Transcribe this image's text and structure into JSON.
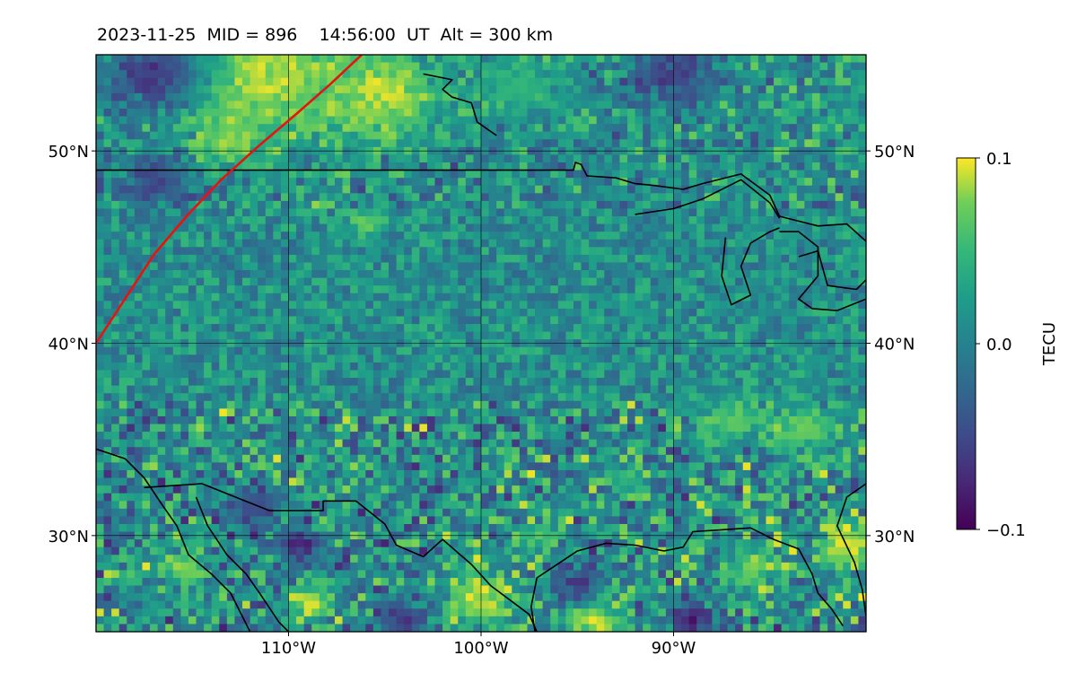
{
  "title": "2023-11-25  MID = 896    14:56:00  UT  Alt = 300 km",
  "chart_data": {
    "type": "heatmap",
    "lon_range": [
      -120,
      -80
    ],
    "lat_range": [
      25,
      55
    ],
    "lon_ticks": [
      {
        "value": -110,
        "label": "110°W"
      },
      {
        "value": -100,
        "label": "100°W"
      },
      {
        "value": -90,
        "label": "90°W"
      }
    ],
    "lat_ticks": [
      {
        "value": 50,
        "label": "50°N"
      },
      {
        "value": 40,
        "label": "40°N"
      },
      {
        "value": 30,
        "label": "30°N"
      }
    ],
    "grid": true,
    "colorbar": {
      "label": "TECU",
      "min": -0.1,
      "max": 0.1,
      "ticks": [
        {
          "value": 0.1,
          "label": "0.1"
        },
        {
          "value": 0.0,
          "label": "0.0"
        },
        {
          "value": -0.1,
          "label": "−0.1"
        }
      ],
      "colormap": "viridis"
    },
    "track_line": {
      "color": "#e8140c",
      "points": [
        [
          -120,
          40
        ],
        [
          -118.5,
          42.3
        ],
        [
          -117,
          44.6
        ],
        [
          -115.3,
          46.6
        ],
        [
          -113.5,
          48.5
        ],
        [
          -111.5,
          50.3
        ],
        [
          -109.5,
          52.0
        ],
        [
          -107.8,
          53.5
        ],
        [
          -106.2,
          55
        ]
      ]
    },
    "hotspots": [
      {
        "lon": -111,
        "lat": 53.8,
        "value": 0.1,
        "radius": 4.2
      },
      {
        "lon": -105,
        "lat": 53.0,
        "value": 0.1,
        "radius": 3.0
      },
      {
        "lon": -113,
        "lat": 50.5,
        "value": 0.09,
        "radius": 1.6
      },
      {
        "lon": -117,
        "lat": 54,
        "value": -0.08,
        "radius": 2.2
      },
      {
        "lon": -90,
        "lat": 54,
        "value": -0.07,
        "radius": 2.0
      },
      {
        "lon": -98,
        "lat": 53.5,
        "value": 0.05,
        "radius": 2.2
      },
      {
        "lon": -117,
        "lat": 48.5,
        "value": -0.06,
        "radius": 1.6
      },
      {
        "lon": -106,
        "lat": 46.2,
        "value": 0.09,
        "radius": 0.8
      },
      {
        "lon": -87,
        "lat": 36.0,
        "value": 0.07,
        "radius": 1.8
      },
      {
        "lon": -83,
        "lat": 35.5,
        "value": 0.08,
        "radius": 1.6
      },
      {
        "lon": -81,
        "lat": 29.5,
        "value": 0.1,
        "radius": 1.8
      },
      {
        "lon": -86,
        "lat": 28.2,
        "value": 0.08,
        "radius": 1.6
      },
      {
        "lon": -100,
        "lat": 26.8,
        "value": 0.1,
        "radius": 2.0
      },
      {
        "lon": -94,
        "lat": 25.6,
        "value": 0.1,
        "radius": 1.6
      },
      {
        "lon": -115.5,
        "lat": 28.3,
        "value": 0.09,
        "radius": 1.3
      },
      {
        "lon": -109,
        "lat": 26.5,
        "value": 0.1,
        "radius": 1.2
      },
      {
        "lon": -109.5,
        "lat": 29.5,
        "value": -0.08,
        "radius": 1.3
      },
      {
        "lon": -95,
        "lat": 27.5,
        "value": -0.08,
        "radius": 1.2
      },
      {
        "lon": -89,
        "lat": 25.6,
        "value": -0.09,
        "radius": 1.2
      },
      {
        "lon": -104,
        "lat": 25.7,
        "value": -0.07,
        "radius": 1.3
      },
      {
        "lon": -97,
        "lat": 30,
        "value": 0.07,
        "radius": 1.0
      },
      {
        "lon": -112,
        "lat": 31.5,
        "value": -0.05,
        "radius": 1.5
      },
      {
        "lon": -92.5,
        "lat": 33,
        "value": 0.06,
        "radius": 1.0
      }
    ],
    "coastlines": [
      [
        [
          -120,
          49
        ],
        [
          -95.2,
          49
        ],
        [
          -95.1,
          49.4
        ],
        [
          -94.8,
          49.3
        ],
        [
          -94.5,
          48.7
        ],
        [
          -93,
          48.6
        ],
        [
          -92,
          48.3
        ],
        [
          -91,
          48.2
        ],
        [
          -89.5,
          48.0
        ],
        [
          -88.5,
          48.3
        ],
        [
          -86.5,
          48.8
        ],
        [
          -85,
          47.7
        ],
        [
          -84.5,
          46.6
        ],
        [
          -82.5,
          46.1
        ],
        [
          -81,
          46.2
        ],
        [
          -80,
          45.3
        ]
      ],
      [
        [
          -79.8,
          55
        ],
        [
          -79.8,
          53
        ],
        [
          -80,
          52.7
        ],
        [
          -78,
          51.5
        ]
      ],
      [
        [
          -103,
          54
        ],
        [
          -101.5,
          53.7
        ],
        [
          -102,
          53.2
        ],
        [
          -101.5,
          52.8
        ],
        [
          -100.5,
          52.5
        ],
        [
          -100.2,
          51.5
        ],
        [
          -99.2,
          50.8
        ]
      ],
      [
        [
          -92,
          46.7
        ],
        [
          -90,
          47
        ],
        [
          -88.5,
          47.5
        ],
        [
          -86.5,
          48.5
        ],
        [
          -85,
          47.3
        ],
        [
          -84.5,
          46.5
        ]
      ],
      [
        [
          -87.3,
          45.5
        ],
        [
          -87.5,
          43.5
        ],
        [
          -87.0,
          42
        ],
        [
          -86,
          42.5
        ],
        [
          -86.5,
          44
        ],
        [
          -86,
          45.2
        ],
        [
          -85,
          45.8
        ],
        [
          -84.5,
          46.0
        ]
      ],
      [
        [
          -84.5,
          45.8
        ],
        [
          -83.5,
          45.8
        ],
        [
          -82.5,
          45.0
        ],
        [
          -82.5,
          43.5
        ],
        [
          -83.5,
          42.3
        ],
        [
          -82.8,
          41.8
        ],
        [
          -81.5,
          41.7
        ],
        [
          -80,
          42.3
        ]
      ],
      [
        [
          -83.5,
          44.5
        ],
        [
          -82.5,
          44.8
        ],
        [
          -82,
          43
        ],
        [
          -80.5,
          42.8
        ],
        [
          -80,
          43.3
        ]
      ],
      [
        [
          -120,
          34.5
        ],
        [
          -118.5,
          34
        ],
        [
          -117.5,
          33
        ],
        [
          -116.5,
          31.5
        ],
        [
          -115.8,
          30.5
        ],
        [
          -115.2,
          29
        ],
        [
          -114,
          28
        ],
        [
          -113,
          27
        ],
        [
          -112,
          25
        ]
      ],
      [
        [
          -117.5,
          32.5
        ],
        [
          -114.5,
          32.7
        ],
        [
          -111,
          31.3
        ],
        [
          -108.2,
          31.3
        ],
        [
          -108.2,
          31.8
        ],
        [
          -106.5,
          31.8
        ],
        [
          -105,
          30.6
        ],
        [
          -104.4,
          29.5
        ],
        [
          -103,
          28.9
        ],
        [
          -102,
          29.8
        ],
        [
          -100.5,
          28.5
        ],
        [
          -99.5,
          27.4
        ],
        [
          -97.5,
          25.9
        ],
        [
          -97.1,
          25
        ]
      ],
      [
        [
          -114.8,
          32
        ],
        [
          -114.2,
          30.5
        ],
        [
          -113.2,
          29
        ],
        [
          -112.2,
          28
        ],
        [
          -111.5,
          27
        ],
        [
          -110.5,
          25.5
        ],
        [
          -110,
          25
        ]
      ],
      [
        [
          -97.2,
          25
        ],
        [
          -97.4,
          26.3
        ],
        [
          -97.1,
          27.8
        ],
        [
          -95,
          29.2
        ],
        [
          -93.5,
          29.6
        ],
        [
          -92,
          29.5
        ],
        [
          -90.5,
          29.2
        ],
        [
          -89.5,
          29.4
        ],
        [
          -89,
          30.2
        ],
        [
          -87.5,
          30.3
        ],
        [
          -86,
          30.4
        ],
        [
          -84.8,
          29.8
        ],
        [
          -83.5,
          29.3
        ],
        [
          -82.8,
          28
        ],
        [
          -82.5,
          27
        ],
        [
          -81.8,
          26.2
        ],
        [
          -81.2,
          25.3
        ]
      ],
      [
        [
          -80,
          25.8
        ],
        [
          -80.2,
          27.2
        ],
        [
          -80.6,
          28.6
        ],
        [
          -81.5,
          30.5
        ],
        [
          -81,
          32
        ],
        [
          -80,
          32.7
        ]
      ]
    ]
  }
}
